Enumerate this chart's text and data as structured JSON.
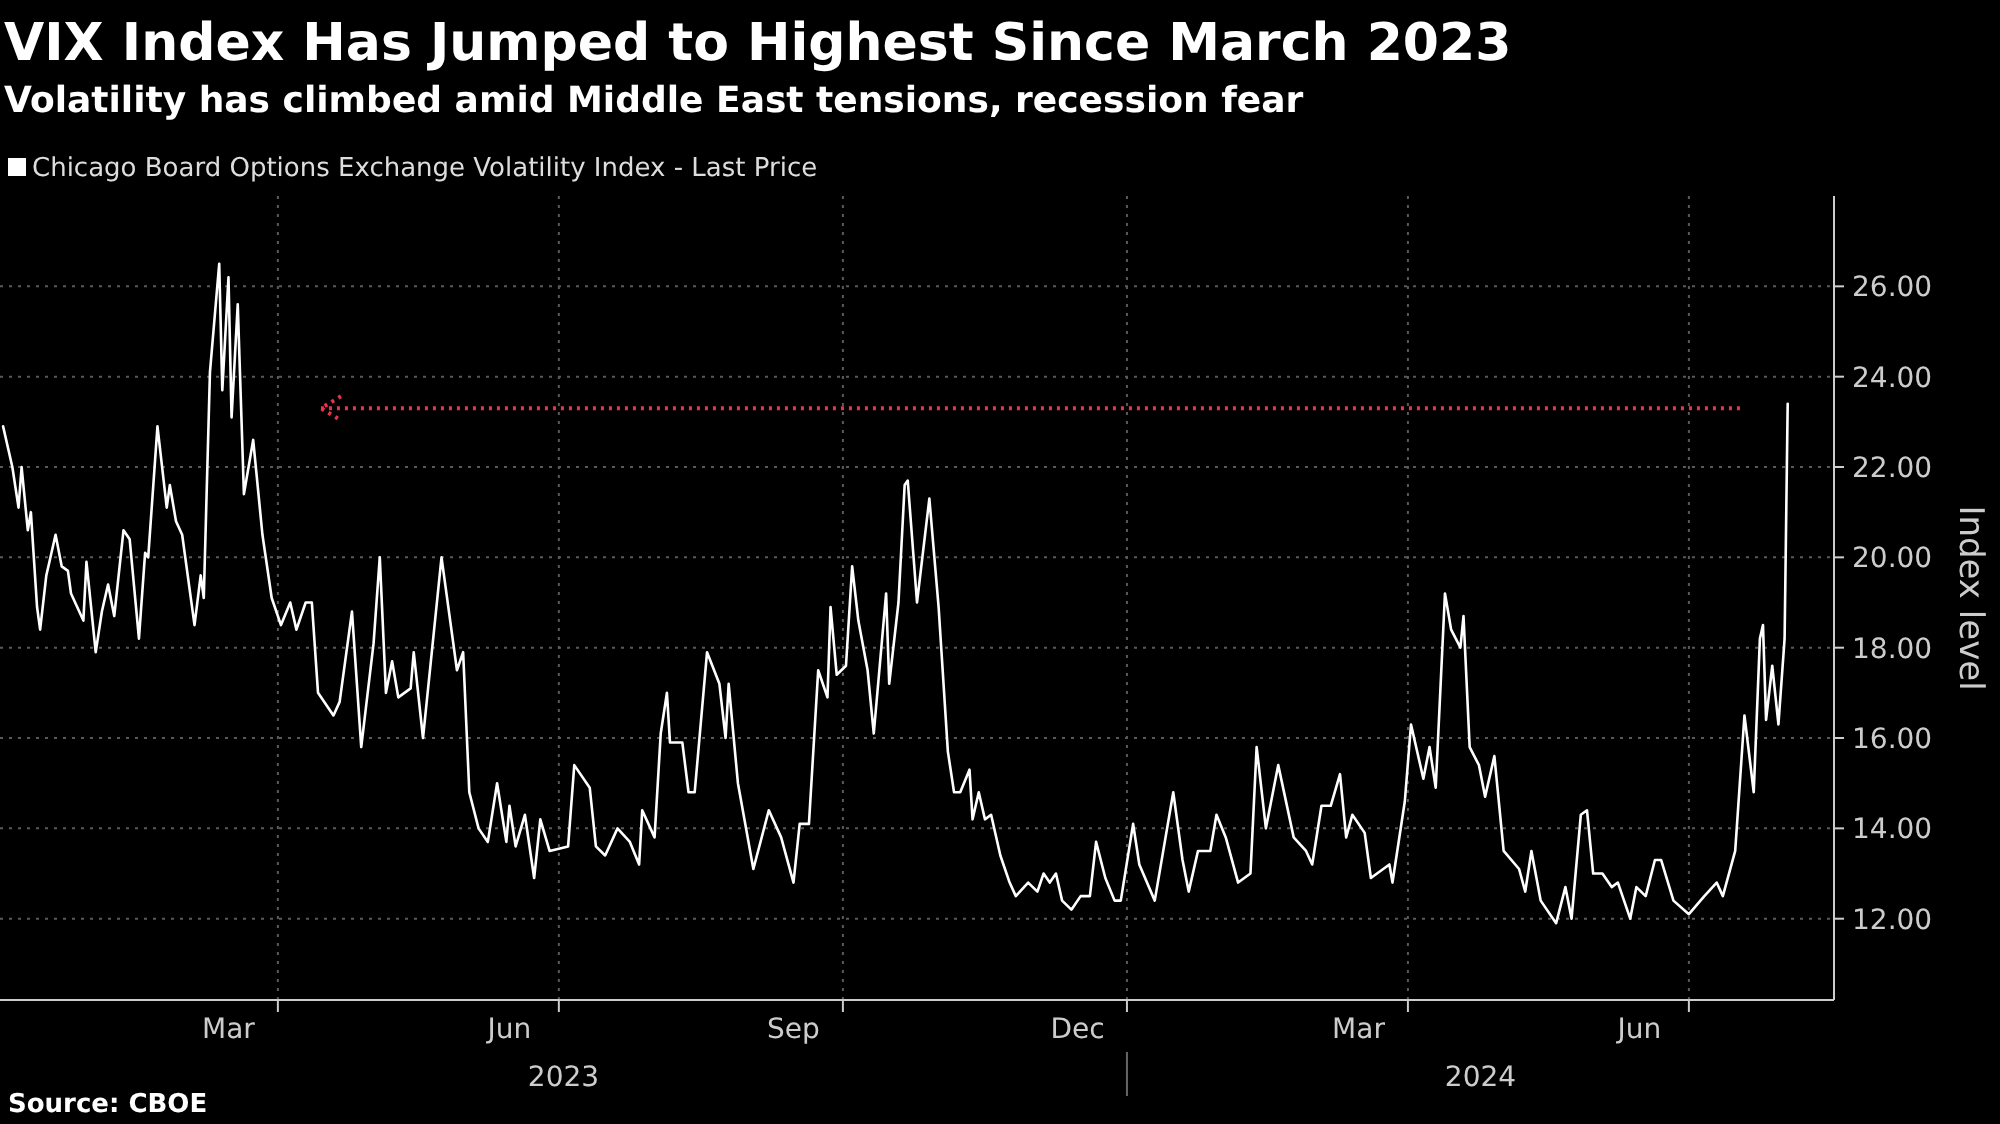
{
  "chart_data": {
    "type": "line",
    "title": "VIX Index Has Jumped to Highest Since March 2023",
    "subtitle": "Volatility has climbed amid Middle East tensions, recession fear",
    "ylabel": "Index level",
    "legend": "top left",
    "grid": true,
    "line_style": "solid",
    "xlim": [
      "2023-01-01",
      "2024-08-17"
    ],
    "ylim": [
      10.2,
      28
    ],
    "yticks": [
      {
        "value": 12,
        "label": "12.00"
      },
      {
        "value": 14,
        "label": "14.00"
      },
      {
        "value": 16,
        "label": "16.00"
      },
      {
        "value": 18,
        "label": "18.00"
      },
      {
        "value": 20,
        "label": "20.00"
      },
      {
        "value": 22,
        "label": "22.00"
      },
      {
        "value": 24,
        "label": "24.00"
      },
      {
        "value": 26,
        "label": "26.00"
      }
    ],
    "xticks": [
      {
        "value": "2023-03-16",
        "label": "Mar"
      },
      {
        "value": "2023-04-01",
        "label": null
      },
      {
        "value": "2023-06-15",
        "label": "Jun"
      },
      {
        "value": "2023-07-01",
        "label": null
      },
      {
        "value": "2023-09-15",
        "label": "Sep"
      },
      {
        "value": "2023-10-01",
        "label": null
      },
      {
        "value": "2023-12-16",
        "label": "Dec"
      },
      {
        "value": "2024-01-01",
        "label": null
      },
      {
        "value": "2024-03-16",
        "label": "Mar"
      },
      {
        "value": "2024-04-01",
        "label": null
      },
      {
        "value": "2024-06-15",
        "label": "Jun"
      },
      {
        "value": "2024-07-01",
        "label": null
      }
    ],
    "ref_lines": [
      {
        "axis": "y",
        "value": 23.3,
        "label": null,
        "color": "#e8334a",
        "line_style": "dotted"
      }
    ],
    "annotations": [
      "2023",
      "2024",
      "Source: CBOE"
    ],
    "series": [
      {
        "name": "Chicago Board Options Exchange Volatility Index - Last Price",
        "color": "#ffffff",
        "x": [
          "2023-01-02",
          "2023-01-05",
          "2023-01-07",
          "2023-01-08",
          "2023-01-10",
          "2023-01-11",
          "2023-01-13",
          "2023-01-14",
          "2023-01-16",
          "2023-01-19",
          "2023-01-21",
          "2023-01-23",
          "2023-01-24",
          "2023-01-28",
          "2023-01-29",
          "2023-02-01",
          "2023-02-03",
          "2023-02-05",
          "2023-02-07",
          "2023-02-10",
          "2023-02-12",
          "2023-02-15",
          "2023-02-17",
          "2023-02-18",
          "2023-02-21",
          "2023-02-24",
          "2023-02-25",
          "2023-02-27",
          "2023-03-01",
          "2023-03-05",
          "2023-03-07",
          "2023-03-08",
          "2023-03-10",
          "2023-03-13",
          "2023-03-14",
          "2023-03-16",
          "2023-03-17",
          "2023-03-19",
          "2023-03-21",
          "2023-03-24",
          "2023-03-27",
          "2023-03-30",
          "2023-04-02",
          "2023-04-05",
          "2023-04-07",
          "2023-04-10",
          "2023-04-12",
          "2023-04-14",
          "2023-04-19",
          "2023-04-21",
          "2023-04-25",
          "2023-04-28",
          "2023-05-02",
          "2023-05-04",
          "2023-05-06",
          "2023-05-08",
          "2023-05-10",
          "2023-05-14",
          "2023-05-15",
          "2023-05-18",
          "2023-05-24",
          "2023-05-29",
          "2023-05-31",
          "2023-06-02",
          "2023-06-05",
          "2023-06-08",
          "2023-06-11",
          "2023-06-14",
          "2023-06-15",
          "2023-06-17",
          "2023-06-20",
          "2023-06-23",
          "2023-06-25",
          "2023-06-28",
          "2023-07-04",
          "2023-07-06",
          "2023-07-11",
          "2023-07-13",
          "2023-07-16",
          "2023-07-20",
          "2023-07-24",
          "2023-07-27",
          "2023-07-28",
          "2023-08-01",
          "2023-08-03",
          "2023-08-05",
          "2023-08-06",
          "2023-08-10",
          "2023-08-12",
          "2023-08-14",
          "2023-08-18",
          "2023-08-22",
          "2023-08-24",
          "2023-08-25",
          "2023-08-28",
          "2023-09-02",
          "2023-09-07",
          "2023-09-11",
          "2023-09-15",
          "2023-09-17",
          "2023-09-20",
          "2023-09-23",
          "2023-09-26",
          "2023-09-27",
          "2023-09-29",
          "2023-10-02",
          "2023-10-04",
          "2023-10-06",
          "2023-10-09",
          "2023-10-11",
          "2023-10-15",
          "2023-10-16",
          "2023-10-19",
          "2023-10-21",
          "2023-10-22",
          "2023-10-25",
          "2023-10-29",
          "2023-11-01",
          "2023-11-04",
          "2023-11-06",
          "2023-11-08",
          "2023-11-11",
          "2023-11-12",
          "2023-11-14",
          "2023-11-16",
          "2023-11-18",
          "2023-11-21",
          "2023-11-24",
          "2023-11-26",
          "2023-11-30",
          "2023-12-03",
          "2023-12-05",
          "2023-12-07",
          "2023-12-09",
          "2023-12-11",
          "2023-12-14",
          "2023-12-17",
          "2023-12-20",
          "2023-12-22",
          "2023-12-25",
          "2023-12-28",
          "2023-12-30",
          "2024-01-03",
          "2024-01-05",
          "2024-01-10",
          "2024-01-16",
          "2024-01-19",
          "2024-01-21",
          "2024-01-24",
          "2024-01-28",
          "2024-01-30",
          "2024-02-02",
          "2024-02-06",
          "2024-02-10",
          "2024-02-12",
          "2024-02-15",
          "2024-02-19",
          "2024-02-24",
          "2024-02-28",
          "2024-03-01",
          "2024-03-04",
          "2024-03-07",
          "2024-03-10",
          "2024-03-12",
          "2024-03-14",
          "2024-03-18",
          "2024-03-20",
          "2024-03-26",
          "2024-03-27",
          "2024-03-31",
          "2024-04-02",
          "2024-04-06",
          "2024-04-08",
          "2024-04-10",
          "2024-04-13",
          "2024-04-15",
          "2024-04-18",
          "2024-04-19",
          "2024-04-21",
          "2024-04-24",
          "2024-04-26",
          "2024-04-29",
          "2024-05-02",
          "2024-05-07",
          "2024-05-09",
          "2024-05-11",
          "2024-05-14",
          "2024-05-19",
          "2024-05-22",
          "2024-05-24",
          "2024-05-27",
          "2024-05-29",
          "2024-05-31",
          "2024-06-03",
          "2024-06-06",
          "2024-06-08",
          "2024-06-12",
          "2024-06-14",
          "2024-06-17",
          "2024-06-20",
          "2024-06-22",
          "2024-06-26",
          "2024-07-01",
          "2024-07-06",
          "2024-07-10",
          "2024-07-12",
          "2024-07-16",
          "2024-07-19",
          "2024-07-22",
          "2024-07-24",
          "2024-07-25",
          "2024-07-26",
          "2024-07-28",
          "2024-07-30",
          "2024-08-01",
          "2024-08-02"
        ],
        "values": [
          22.9,
          22.0,
          21.1,
          22.0,
          20.6,
          21.0,
          18.9,
          18.4,
          19.6,
          20.5,
          19.8,
          19.7,
          19.2,
          18.6,
          19.9,
          17.9,
          18.8,
          19.4,
          18.7,
          20.6,
          20.4,
          18.2,
          20.1,
          20.0,
          22.9,
          21.1,
          21.6,
          20.8,
          20.5,
          18.5,
          19.6,
          19.1,
          24.1,
          26.5,
          23.7,
          26.2,
          23.1,
          25.6,
          21.4,
          22.6,
          20.5,
          19.1,
          18.5,
          19.0,
          18.4,
          19.0,
          19.0,
          17.0,
          16.5,
          16.8,
          18.8,
          15.8,
          18.1,
          20.0,
          17.0,
          17.7,
          16.9,
          17.1,
          17.9,
          16.0,
          20.0,
          17.5,
          17.9,
          14.8,
          14.0,
          13.7,
          15.0,
          13.7,
          14.5,
          13.6,
          14.3,
          12.9,
          14.2,
          13.5,
          13.6,
          15.4,
          14.9,
          13.6,
          13.4,
          14.0,
          13.7,
          13.2,
          14.4,
          13.8,
          16.1,
          17.0,
          15.9,
          15.9,
          14.8,
          14.8,
          17.9,
          17.2,
          16.0,
          17.2,
          15.0,
          13.1,
          14.4,
          13.8,
          12.8,
          14.1,
          14.1,
          17.5,
          16.9,
          18.9,
          17.4,
          17.6,
          19.8,
          18.6,
          17.5,
          16.1,
          19.2,
          17.2,
          19.0,
          21.6,
          21.7,
          19.0,
          21.3,
          18.9,
          15.7,
          14.8,
          14.8,
          15.3,
          14.2,
          14.8,
          14.2,
          14.3,
          13.4,
          12.8,
          12.5,
          12.8,
          12.6,
          13.0,
          12.8,
          13.0,
          12.4,
          12.2,
          12.5,
          12.5,
          13.7,
          12.9,
          12.4,
          12.4,
          14.1,
          13.2,
          12.4,
          14.8,
          13.3,
          12.6,
          13.5,
          13.5,
          14.3,
          13.8,
          12.8,
          13.0,
          15.8,
          14.0,
          15.4,
          13.8,
          13.5,
          13.2,
          14.5,
          14.5,
          15.2,
          13.8,
          14.3,
          13.9,
          12.9,
          13.2,
          12.8,
          14.6,
          16.3,
          15.1,
          15.8,
          14.9,
          19.2,
          18.4,
          18.0,
          18.7,
          15.8,
          15.4,
          14.7,
          15.6,
          13.5,
          13.1,
          12.6,
          13.5,
          12.4,
          11.9,
          12.7,
          12.0,
          14.3,
          14.4,
          13.0,
          13.0,
          12.7,
          12.8,
          12.0,
          12.7,
          12.5,
          13.3,
          13.3,
          12.4,
          12.1,
          12.5,
          12.8,
          12.5,
          13.5,
          16.5,
          14.8,
          18.2,
          18.5,
          16.4,
          17.6,
          16.3,
          18.2,
          23.4
        ]
      }
    ]
  }
}
